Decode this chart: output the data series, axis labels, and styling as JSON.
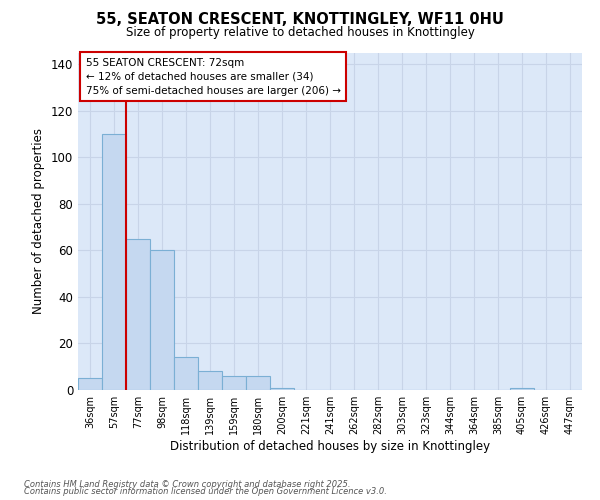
{
  "title": "55, SEATON CRESCENT, KNOTTINGLEY, WF11 0HU",
  "subtitle": "Size of property relative to detached houses in Knottingley",
  "xlabel": "Distribution of detached houses by size in Knottingley",
  "ylabel": "Number of detached properties",
  "bins": [
    "36sqm",
    "57sqm",
    "77sqm",
    "98sqm",
    "118sqm",
    "139sqm",
    "159sqm",
    "180sqm",
    "200sqm",
    "221sqm",
    "241sqm",
    "262sqm",
    "282sqm",
    "303sqm",
    "323sqm",
    "344sqm",
    "364sqm",
    "385sqm",
    "405sqm",
    "426sqm",
    "447sqm"
  ],
  "values": [
    5,
    110,
    65,
    60,
    14,
    8,
    6,
    6,
    1,
    0,
    0,
    0,
    0,
    0,
    0,
    0,
    0,
    0,
    1,
    0,
    0
  ],
  "bar_color": "#c5d8f0",
  "bar_edge_color": "#7bafd4",
  "vline_color": "#cc0000",
  "vline_pos": 2,
  "ylim": [
    0,
    145
  ],
  "yticks": [
    0,
    20,
    40,
    60,
    80,
    100,
    120,
    140
  ],
  "annotation_title": "55 SEATON CRESCENT: 72sqm",
  "annotation_line1": "← 12% of detached houses are smaller (34)",
  "annotation_line2": "75% of semi-detached houses are larger (206) →",
  "annotation_box_facecolor": "#ffffff",
  "annotation_box_edgecolor": "#cc0000",
  "grid_color": "#c8d4e8",
  "footer1": "Contains HM Land Registry data © Crown copyright and database right 2025.",
  "footer2": "Contains public sector information licensed under the Open Government Licence v3.0.",
  "fig_facecolor": "#ffffff",
  "plot_facecolor": "#dce8f8"
}
